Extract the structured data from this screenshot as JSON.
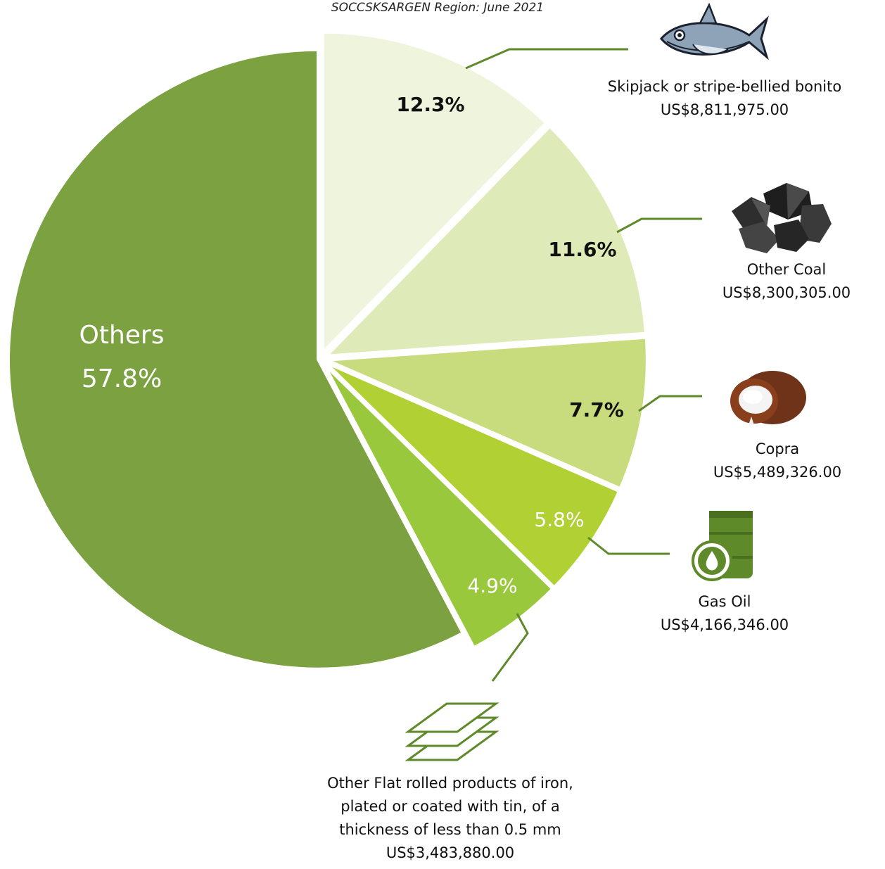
{
  "subtitle": "SOCCSKSARGEN Region: June 2021",
  "chart_data": {
    "type": "pie",
    "title": "",
    "subtitle": "SOCCSKSARGEN Region: June 2021",
    "slices": [
      {
        "name": "Skipjack or stripe-bellied bonito",
        "value": 12.3,
        "pct_label": "12.3%",
        "amount": "US$8,811,975.00",
        "color": "#eef5dc",
        "icon": "fish-icon"
      },
      {
        "name": "Other Coal",
        "value": 11.6,
        "pct_label": "11.6%",
        "amount": "US$8,300,305.00",
        "color": "#deebb8",
        "icon": "coal-icon"
      },
      {
        "name": "Copra",
        "value": 7.7,
        "pct_label": "7.7%",
        "amount": "US$5,489,326.00",
        "color": "#c8dc7e",
        "icon": "coconut-icon"
      },
      {
        "name": "Gas Oil",
        "value": 5.8,
        "pct_label": "5.8%",
        "amount": "US$4,166,346.00",
        "color": "#b0d034",
        "icon": "oil-barrel-icon"
      },
      {
        "name": "Other Flat rolled products of iron, plated or coated with tin, of a thickness of less than 0.5 mm",
        "value": 4.9,
        "pct_label": "4.9%",
        "amount": "US$3,483,880.00",
        "color": "#9ac83c",
        "icon": "sheets-icon"
      },
      {
        "name": "Others",
        "value": 57.8,
        "pct_label": "57.8%",
        "amount": "",
        "color": "#7ba140",
        "icon": ""
      }
    ],
    "flat_label_lines": [
      "Other Flat rolled products of iron,",
      "plated or coated with tin, of a",
      "thickness of less than 0.5 mm"
    ]
  }
}
